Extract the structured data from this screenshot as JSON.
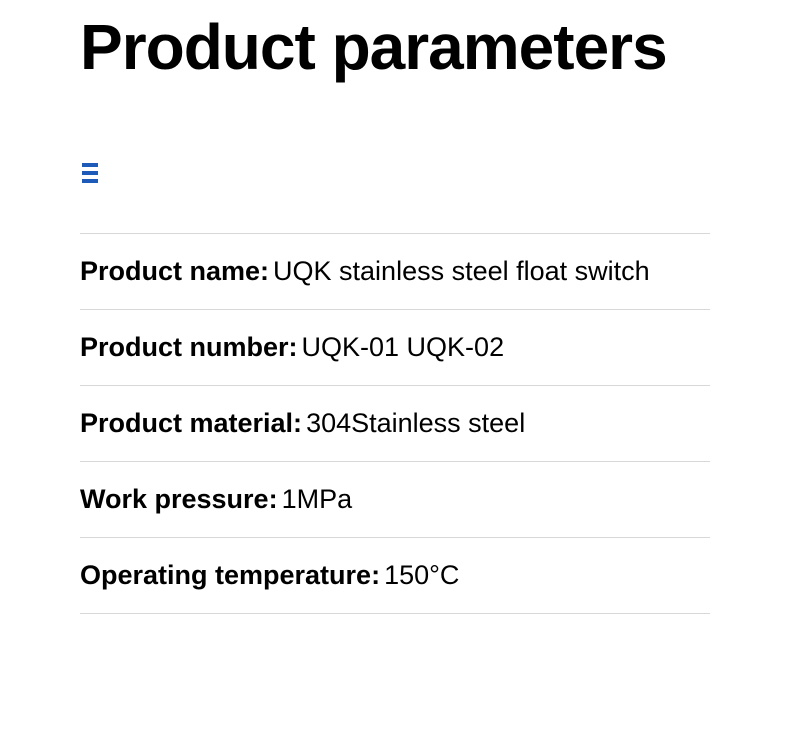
{
  "title": "Product parameters",
  "menu_icon": {
    "bar_color": "#1e5bb8",
    "bar_count": 3
  },
  "divider_color": "#d8d8d8",
  "params": [
    {
      "label": "Product name:",
      "value": "UQK stainless steel float switch"
    },
    {
      "label": "Product number:",
      "value": "UQK-01 UQK-02"
    },
    {
      "label": "Product material:",
      "value": "304Stainless steel"
    },
    {
      "label": "Work pressure:",
      "value": " 1MPa"
    },
    {
      "label": "Operating temperature:",
      "value": "150°C"
    }
  ],
  "typography": {
    "title_fontsize": 64,
    "title_fontweight": 900,
    "label_fontsize": 27,
    "label_fontweight": 900,
    "value_fontsize": 27,
    "value_fontweight": 400
  },
  "background_color": "#ffffff",
  "text_color": "#000000"
}
